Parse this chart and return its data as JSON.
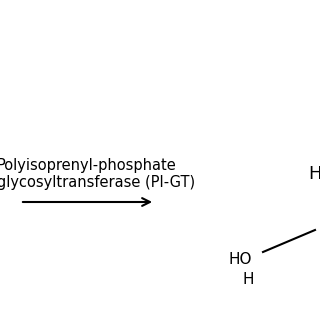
{
  "background_color": "#ffffff",
  "enzyme_line1": "Polyisoprenyl-phosphate",
  "enzyme_line2": "glycosyltransferase (PI-GT)",
  "enzyme_fontsize": 10.5,
  "arrow_color": "#000000",
  "text_color": "#000000",
  "figsize": [
    3.2,
    3.2
  ],
  "dpi": 100
}
